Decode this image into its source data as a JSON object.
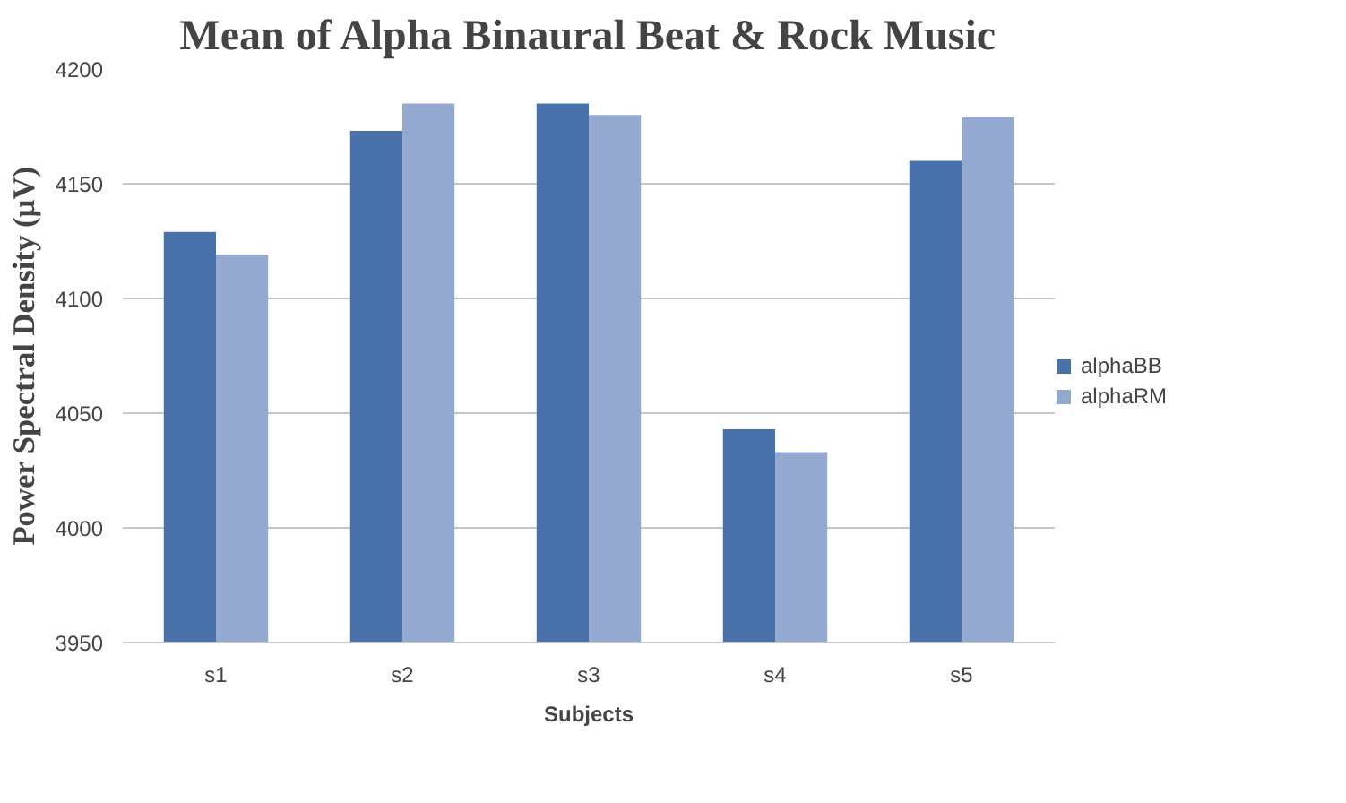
{
  "chart_data": {
    "type": "bar",
    "title": "Mean of Alpha Binaural Beat & Rock Music",
    "xlabel": "Subjects",
    "ylabel": "Power Spectral Density (µV)",
    "categories": [
      "s1",
      "s2",
      "s3",
      "s4",
      "s5"
    ],
    "series": [
      {
        "name": "alphaBB",
        "color": "#4a72aa",
        "values": [
          4129,
          4173,
          4185,
          4043,
          4160
        ]
      },
      {
        "name": "alphaRM",
        "color": "#93a9d0",
        "values": [
          4119,
          4185,
          4180,
          4033,
          4179
        ]
      }
    ],
    "ylim": [
      3950,
      4200
    ],
    "yticks": [
      3950,
      4000,
      4050,
      4100,
      4150,
      4200
    ],
    "grid": "y",
    "legend": "right"
  }
}
